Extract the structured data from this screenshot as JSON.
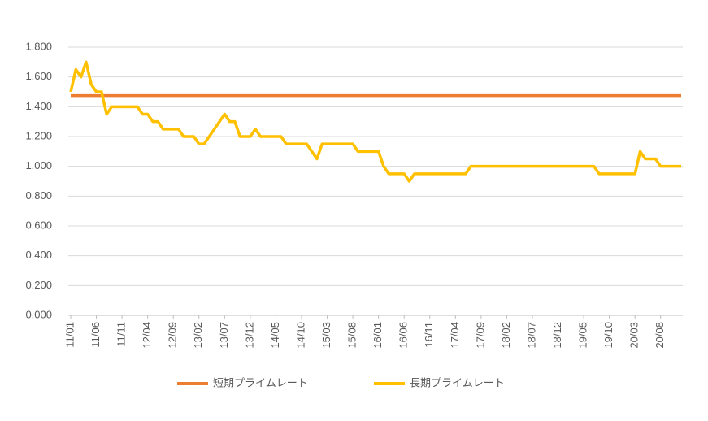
{
  "chart_data": {
    "type": "line",
    "categories": [
      "11/01",
      null,
      null,
      null,
      null,
      "11/06",
      null,
      null,
      null,
      null,
      "11/11",
      null,
      null,
      null,
      null,
      "12/04",
      null,
      null,
      null,
      null,
      "12/09",
      null,
      null,
      null,
      null,
      "13/02",
      null,
      null,
      null,
      null,
      "13/07",
      null,
      null,
      null,
      null,
      "13/12",
      null,
      null,
      null,
      null,
      "14/05",
      null,
      null,
      null,
      null,
      "14/10",
      null,
      null,
      null,
      null,
      "15/03",
      null,
      null,
      null,
      null,
      "15/08",
      null,
      null,
      null,
      null,
      "16/01",
      null,
      null,
      null,
      null,
      "16/06",
      null,
      null,
      null,
      null,
      "16/11",
      null,
      null,
      null,
      null,
      "17/04",
      null,
      null,
      null,
      null,
      "17/09",
      null,
      null,
      null,
      null,
      "18/02",
      null,
      null,
      null,
      null,
      "18/07",
      null,
      null,
      null,
      null,
      "18/12",
      null,
      null,
      null,
      null,
      "19/05",
      null,
      null,
      null,
      null,
      "19/10",
      null,
      null,
      null,
      null,
      "20/03",
      null,
      null,
      null,
      null,
      "20/08",
      null,
      null,
      null,
      null
    ],
    "series": [
      {
        "name": "短期プライムレート",
        "color": "#ed7d31",
        "values": [
          1.475,
          1.475,
          1.475,
          1.475,
          1.475,
          1.475,
          1.475,
          1.475,
          1.475,
          1.475,
          1.475,
          1.475,
          1.475,
          1.475,
          1.475,
          1.475,
          1.475,
          1.475,
          1.475,
          1.475,
          1.475,
          1.475,
          1.475,
          1.475,
          1.475,
          1.475,
          1.475,
          1.475,
          1.475,
          1.475,
          1.475,
          1.475,
          1.475,
          1.475,
          1.475,
          1.475,
          1.475,
          1.475,
          1.475,
          1.475,
          1.475,
          1.475,
          1.475,
          1.475,
          1.475,
          1.475,
          1.475,
          1.475,
          1.475,
          1.475,
          1.475,
          1.475,
          1.475,
          1.475,
          1.475,
          1.475,
          1.475,
          1.475,
          1.475,
          1.475,
          1.475,
          1.475,
          1.475,
          1.475,
          1.475,
          1.475,
          1.475,
          1.475,
          1.475,
          1.475,
          1.475,
          1.475,
          1.475,
          1.475,
          1.475,
          1.475,
          1.475,
          1.475,
          1.475,
          1.475,
          1.475,
          1.475,
          1.475,
          1.475,
          1.475,
          1.475,
          1.475,
          1.475,
          1.475,
          1.475,
          1.475,
          1.475,
          1.475,
          1.475,
          1.475,
          1.475,
          1.475,
          1.475,
          1.475,
          1.475,
          1.475,
          1.475,
          1.475,
          1.475,
          1.475,
          1.475,
          1.475,
          1.475,
          1.475,
          1.475,
          1.475,
          1.475,
          1.475,
          1.475,
          1.475,
          1.475,
          1.475,
          1.475,
          1.475,
          1.475
        ]
      },
      {
        "name": "長期プライムレート",
        "color": "#ffc000",
        "values": [
          1.5,
          1.65,
          1.6,
          1.7,
          1.55,
          1.5,
          1.5,
          1.35,
          1.4,
          1.4,
          1.4,
          1.4,
          1.4,
          1.4,
          1.35,
          1.35,
          1.3,
          1.3,
          1.25,
          1.25,
          1.25,
          1.25,
          1.2,
          1.2,
          1.2,
          1.15,
          1.15,
          1.2,
          1.25,
          1.3,
          1.35,
          1.3,
          1.3,
          1.2,
          1.2,
          1.2,
          1.25,
          1.2,
          1.2,
          1.2,
          1.2,
          1.2,
          1.15,
          1.15,
          1.15,
          1.15,
          1.15,
          1.1,
          1.05,
          1.15,
          1.15,
          1.15,
          1.15,
          1.15,
          1.15,
          1.15,
          1.1,
          1.1,
          1.1,
          1.1,
          1.1,
          1.0,
          0.95,
          0.95,
          0.95,
          0.95,
          0.9,
          0.95,
          0.95,
          0.95,
          0.95,
          0.95,
          0.95,
          0.95,
          0.95,
          0.95,
          0.95,
          0.95,
          1.0,
          1.0,
          1.0,
          1.0,
          1.0,
          1.0,
          1.0,
          1.0,
          1.0,
          1.0,
          1.0,
          1.0,
          1.0,
          1.0,
          1.0,
          1.0,
          1.0,
          1.0,
          1.0,
          1.0,
          1.0,
          1.0,
          1.0,
          1.0,
          1.0,
          0.95,
          0.95,
          0.95,
          0.95,
          0.95,
          0.95,
          0.95,
          0.95,
          1.1,
          1.05,
          1.05,
          1.05,
          1.0,
          1.0,
          1.0,
          1.0,
          1.0
        ]
      }
    ],
    "ylim": [
      0,
      1.8
    ],
    "yticks": [
      {
        "value": 0,
        "label": "0.000"
      },
      {
        "value": 0.2,
        "label": "0.200"
      },
      {
        "value": 0.4,
        "label": "0.400"
      },
      {
        "value": 0.6,
        "label": "0.600"
      },
      {
        "value": 0.8,
        "label": "0.800"
      },
      {
        "value": 1.0,
        "label": "1.000"
      },
      {
        "value": 1.2,
        "label": "1.200"
      },
      {
        "value": 1.4,
        "label": "1.400"
      },
      {
        "value": 1.6,
        "label": "1.600"
      },
      {
        "value": 1.8,
        "label": "1.800"
      }
    ],
    "grid": true,
    "legend": "bottom"
  }
}
